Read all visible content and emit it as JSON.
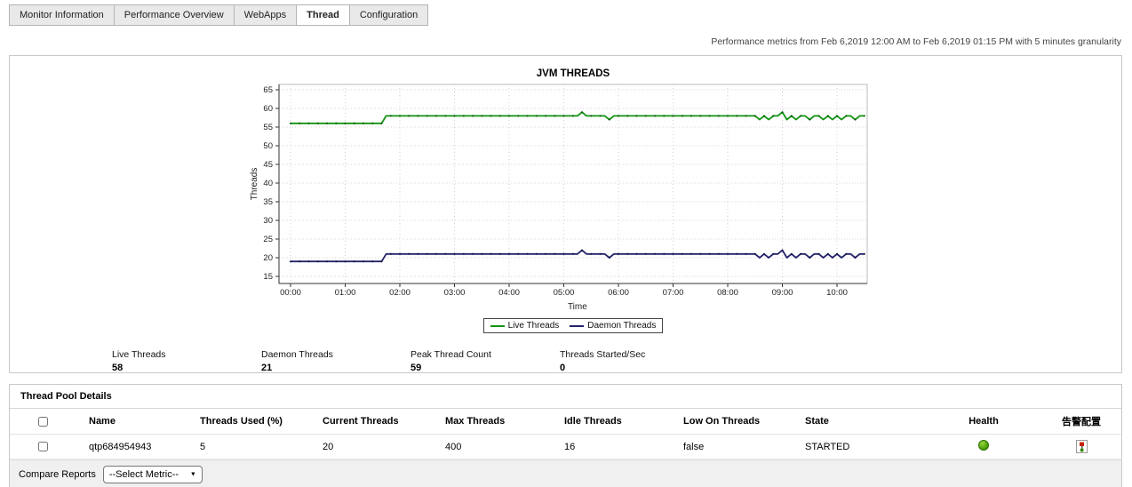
{
  "tabs": {
    "items": [
      {
        "label": "Monitor Information",
        "active": false
      },
      {
        "label": "Performance Overview",
        "active": false
      },
      {
        "label": "WebApps",
        "active": false
      },
      {
        "label": "Thread",
        "active": true
      },
      {
        "label": "Configuration",
        "active": false
      }
    ]
  },
  "subtitle": "Performance metrics from Feb 6,2019 12:00 AM to Feb 6,2019 01:15 PM with 5 minutes granularity",
  "chart_data": {
    "type": "line",
    "title": "JVM THREADS",
    "xlabel": "Time",
    "ylabel": "Threads",
    "ylim": [
      15,
      65
    ],
    "ytick_step": 5,
    "grid": true,
    "legend_position": "bottom",
    "x_ticks": [
      "00:00",
      "01:00",
      "02:00",
      "03:00",
      "04:00",
      "05:00",
      "06:00",
      "07:00",
      "08:00",
      "09:00",
      "10:00"
    ],
    "minutes_per_point": 5,
    "x_start_minutes": 0,
    "x_end_minutes": 630,
    "series": [
      {
        "name": "Live Threads",
        "color": "#129412",
        "marker_color": "#065006",
        "values": [
          56,
          56,
          56,
          56,
          56,
          56,
          56,
          56,
          56,
          56,
          56,
          56,
          56,
          56,
          56,
          56,
          56,
          56,
          56,
          56,
          56,
          58,
          58,
          58,
          58,
          58,
          58,
          58,
          58,
          58,
          58,
          58,
          58,
          58,
          58,
          58,
          58,
          58,
          58,
          58,
          58,
          58,
          58,
          58,
          58,
          58,
          58,
          58,
          58,
          58,
          58,
          58,
          58,
          58,
          58,
          58,
          58,
          58,
          58,
          58,
          58,
          58,
          58,
          58,
          59,
          58,
          58,
          58,
          58,
          58,
          57,
          58,
          58,
          58,
          58,
          58,
          58,
          58,
          58,
          58,
          58,
          58,
          58,
          58,
          58,
          58,
          58,
          58,
          58,
          58,
          58,
          58,
          58,
          58,
          58,
          58,
          58,
          58,
          58,
          58,
          58,
          58,
          58,
          57,
          58,
          57,
          58,
          58,
          59,
          57,
          58,
          57,
          58,
          58,
          57,
          58,
          58,
          57,
          58,
          57,
          58,
          57,
          58,
          58,
          57,
          58,
          58
        ]
      },
      {
        "name": "Daemon Threads",
        "color": "#23236b",
        "marker_color": "#0d0d3a",
        "values": [
          19,
          19,
          19,
          19,
          19,
          19,
          19,
          19,
          19,
          19,
          19,
          19,
          19,
          19,
          19,
          19,
          19,
          19,
          19,
          19,
          19,
          21,
          21,
          21,
          21,
          21,
          21,
          21,
          21,
          21,
          21,
          21,
          21,
          21,
          21,
          21,
          21,
          21,
          21,
          21,
          21,
          21,
          21,
          21,
          21,
          21,
          21,
          21,
          21,
          21,
          21,
          21,
          21,
          21,
          21,
          21,
          21,
          21,
          21,
          21,
          21,
          21,
          21,
          21,
          22,
          21,
          21,
          21,
          21,
          21,
          20,
          21,
          21,
          21,
          21,
          21,
          21,
          21,
          21,
          21,
          21,
          21,
          21,
          21,
          21,
          21,
          21,
          21,
          21,
          21,
          21,
          21,
          21,
          21,
          21,
          21,
          21,
          21,
          21,
          21,
          21,
          21,
          21,
          20,
          21,
          20,
          21,
          21,
          22,
          20,
          21,
          20,
          21,
          21,
          20,
          21,
          21,
          20,
          21,
          20,
          21,
          20,
          21,
          21,
          20,
          21,
          21
        ]
      }
    ]
  },
  "stats": {
    "items": [
      {
        "label": "Live Threads",
        "value": "58"
      },
      {
        "label": "Daemon Threads",
        "value": "21"
      },
      {
        "label": "Peak Thread Count",
        "value": "59"
      },
      {
        "label": "Threads Started/Sec",
        "value": "0"
      }
    ]
  },
  "thread_pool": {
    "title": "Thread Pool Details",
    "columns": [
      "Name",
      "Threads Used (%)",
      "Current Threads",
      "Max Threads",
      "Idle Threads",
      "Low On Threads",
      "State",
      "Health",
      "告警配置"
    ],
    "rows": [
      {
        "name": "qtp684954943",
        "threads_used_pct": "5",
        "current_threads": "20",
        "max_threads": "400",
        "idle_threads": "16",
        "low_on_threads": "false",
        "state": "STARTED",
        "health_icon": "green-ball",
        "health_color": "#3e9400",
        "alarm_icon": "alarm-config"
      }
    ]
  },
  "compare": {
    "label": "Compare Reports",
    "selected": "--Select Metric--",
    "caret": "▼"
  }
}
